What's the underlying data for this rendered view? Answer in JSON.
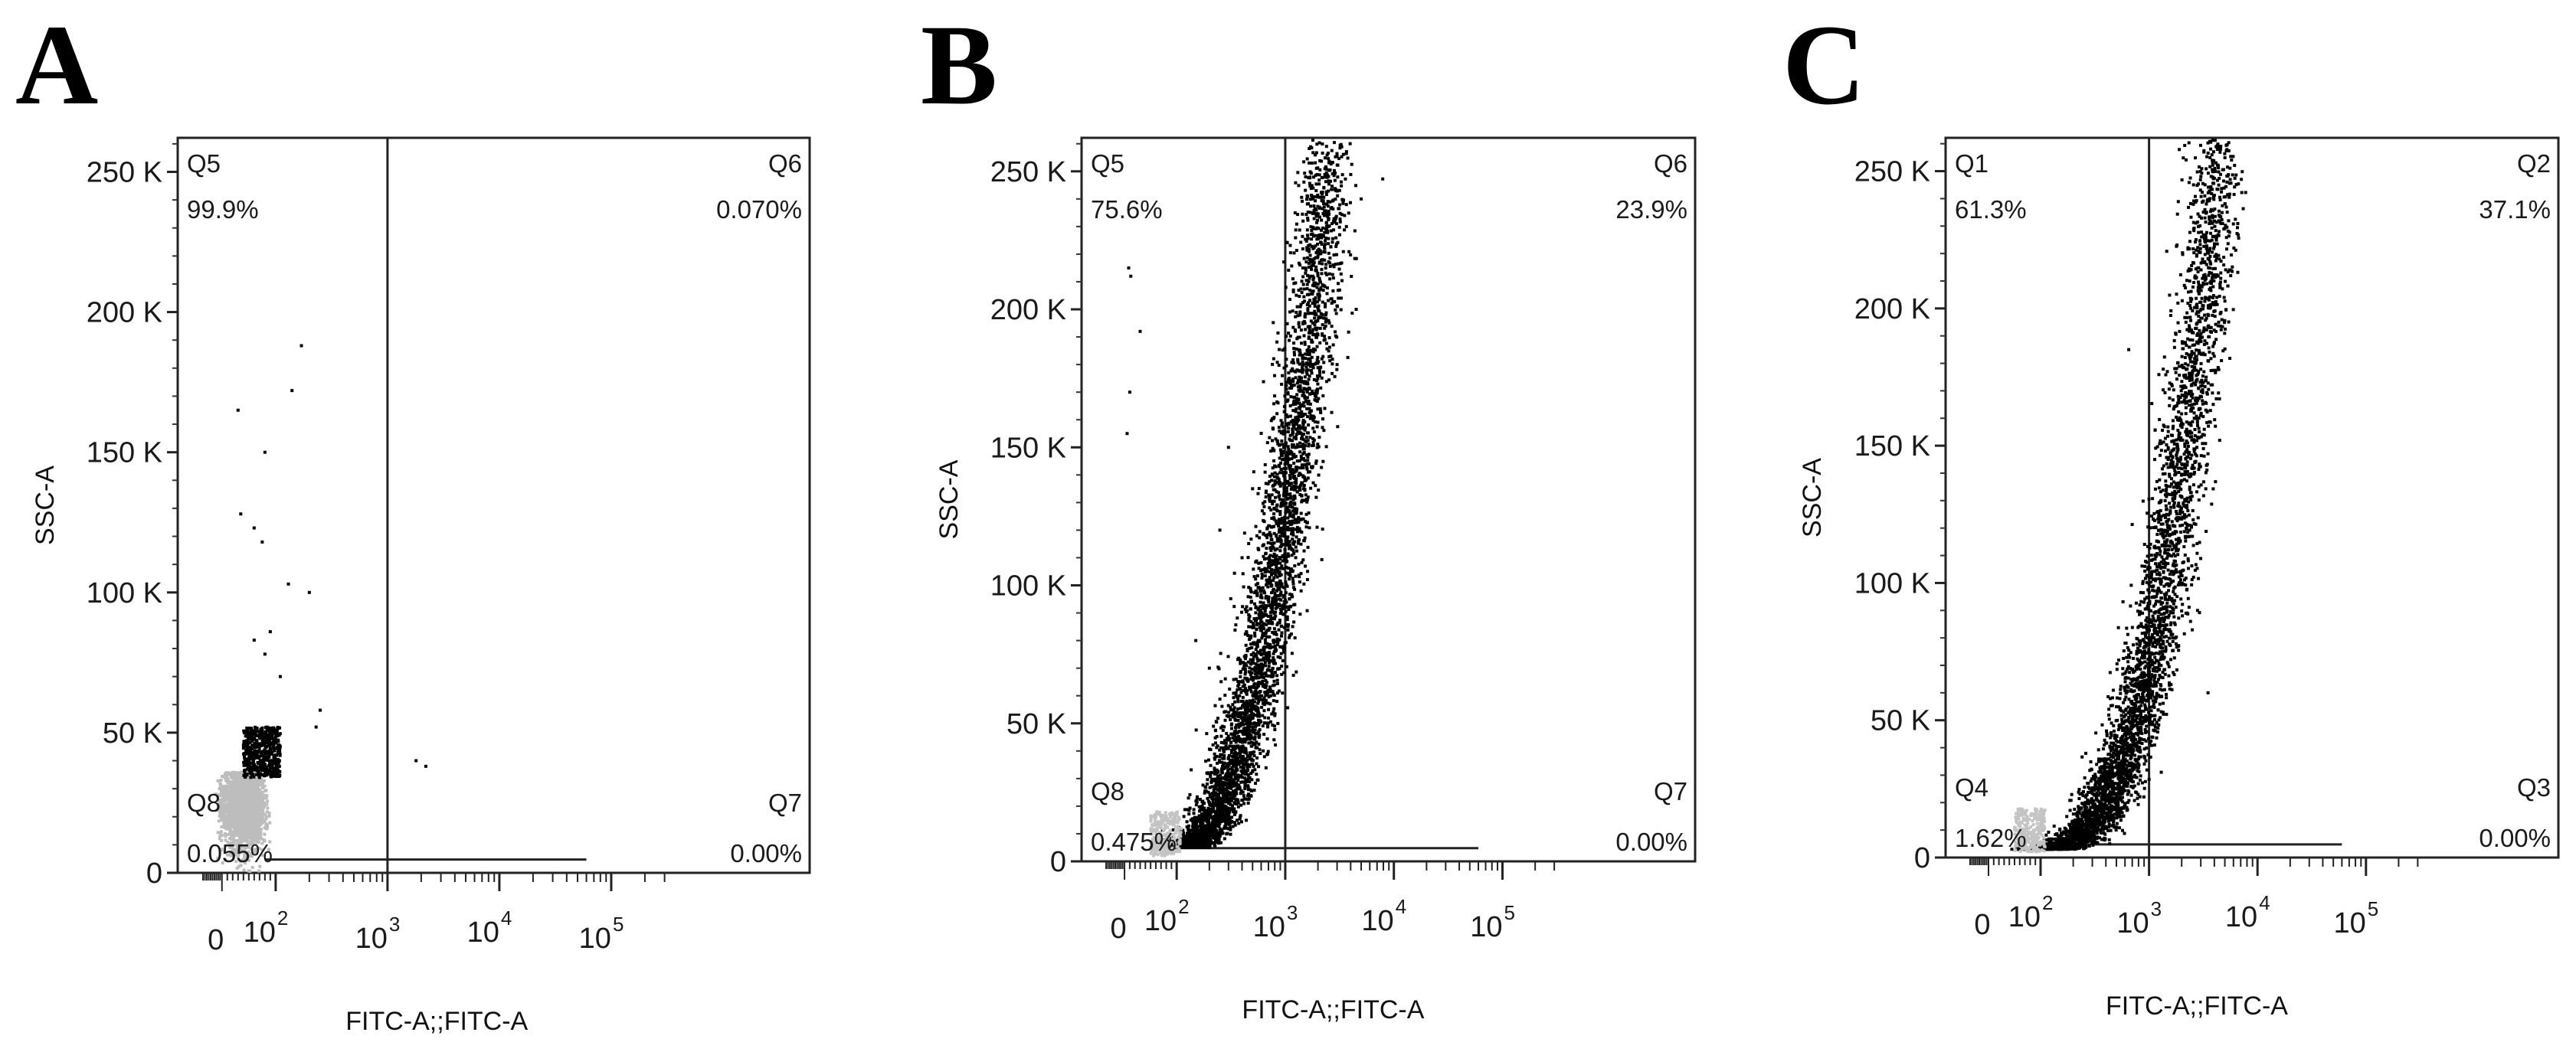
{
  "chart_data": [
    {
      "type": "scatter",
      "panel": "A",
      "xlabel": "FITC-A;;FITC-A",
      "ylabel": "SSC-A",
      "x_scale": "biexponential",
      "x_tick_labels": [
        "0",
        "10",
        "10",
        "10",
        "10"
      ],
      "x_tick_exponents": [
        "",
        "2",
        "3",
        "4",
        "5"
      ],
      "y_tick_labels": [
        "0",
        "50 K",
        "100 K",
        "150 K",
        "200 K",
        "250 K"
      ],
      "ylim": [
        0,
        262144
      ],
      "gate_x": 1000,
      "gate_y": 2000,
      "quadrants": [
        {
          "name": "Q5",
          "value": "99.9%",
          "position": "top-left"
        },
        {
          "name": "Q6",
          "value": "0.070%",
          "position": "top-right"
        },
        {
          "name": "Q8",
          "value": "0.055%",
          "position": "bottom-left"
        },
        {
          "name": "Q7",
          "value": "0.00%",
          "position": "bottom-right"
        }
      ],
      "distribution": {
        "shape": "cluster",
        "center_x": 40,
        "center_y": 25000,
        "spread_x": 35,
        "spread_y": 14000
      },
      "outliers": [
        [
          30,
          165000
        ],
        [
          35,
          128000
        ],
        [
          80,
          150000
        ],
        [
          60,
          123000
        ],
        [
          75,
          118000
        ],
        [
          140,
          172000
        ],
        [
          170,
          188000
        ],
        [
          130,
          103000
        ],
        [
          200,
          100000
        ],
        [
          250,
          58000
        ],
        [
          230,
          52000
        ],
        [
          2200,
          38000
        ],
        [
          1800,
          40000
        ],
        [
          60,
          83000
        ],
        [
          80,
          78000
        ],
        [
          90,
          86000
        ],
        [
          110,
          70000
        ]
      ],
      "grid": false,
      "legend": "none"
    },
    {
      "type": "scatter",
      "panel": "B",
      "xlabel": "FITC-A;;FITC-A",
      "ylabel": "SSC-A",
      "x_scale": "biexponential",
      "x_tick_labels": [
        "0",
        "10",
        "10",
        "10",
        "10"
      ],
      "x_tick_exponents": [
        "",
        "2",
        "3",
        "4",
        "5"
      ],
      "y_tick_labels": [
        "0",
        "50 K",
        "100 K",
        "150 K",
        "200 K",
        "250 K"
      ],
      "ylim": [
        0,
        262144
      ],
      "gate_x": 1000,
      "gate_y": 2000,
      "quadrants": [
        {
          "name": "Q5",
          "value": "75.6%",
          "position": "top-left"
        },
        {
          "name": "Q6",
          "value": "23.9%",
          "position": "top-right"
        },
        {
          "name": "Q8",
          "value": "0.475%",
          "position": "bottom-left"
        },
        {
          "name": "Q7",
          "value": "0.00%",
          "position": "bottom-right"
        }
      ],
      "distribution": {
        "shape": "curve",
        "x_start": 100,
        "x_end": 2600,
        "y_start": 5000,
        "y_end": 262000,
        "curvature": 2.2,
        "spread_log": 0.12
      },
      "outliers": [
        [
          8,
          215000
        ],
        [
          12,
          212000
        ],
        [
          30,
          192000
        ],
        [
          10,
          170000
        ],
        [
          5,
          155000
        ],
        [
          300,
          150000
        ],
        [
          250,
          120000
        ],
        [
          400,
          110000
        ],
        [
          500,
          135000
        ],
        [
          150,
          80000
        ],
        [
          200,
          70000
        ],
        [
          3000,
          180000
        ],
        [
          4500,
          200000
        ],
        [
          5000,
          240000
        ]
      ],
      "grid": false,
      "legend": "none"
    },
    {
      "type": "scatter",
      "panel": "C",
      "xlabel": "FITC-A;;FITC-A",
      "ylabel": "SSC-A",
      "x_scale": "biexponential",
      "x_tick_labels": [
        "0",
        "10",
        "10",
        "10",
        "10"
      ],
      "x_tick_exponents": [
        "",
        "2",
        "3",
        "4",
        "5"
      ],
      "y_tick_labels": [
        "0",
        "50 K",
        "100 K",
        "150 K",
        "200 K",
        "250 K"
      ],
      "ylim": [
        0,
        262144
      ],
      "gate_x": 1000,
      "gate_y": 2000,
      "quadrants": [
        {
          "name": "Q1",
          "value": "61.3%",
          "position": "top-left"
        },
        {
          "name": "Q2",
          "value": "37.1%",
          "position": "top-right"
        },
        {
          "name": "Q4",
          "value": "1.62%",
          "position": "bottom-left"
        },
        {
          "name": "Q3",
          "value": "0.00%",
          "position": "bottom-right"
        }
      ],
      "distribution": {
        "shape": "curve",
        "x_start": 90,
        "x_end": 4300,
        "y_start": 3000,
        "y_end": 262000,
        "curvature": 2.8,
        "spread_log": 0.12
      },
      "outliers": [
        [
          650,
          185000
        ],
        [
          1500,
          145000
        ],
        [
          2200,
          120000
        ],
        [
          3500,
          60000
        ],
        [
          2800,
          90000
        ],
        [
          400,
          30000
        ],
        [
          300,
          25000
        ]
      ],
      "grid": false,
      "legend": "none"
    }
  ]
}
